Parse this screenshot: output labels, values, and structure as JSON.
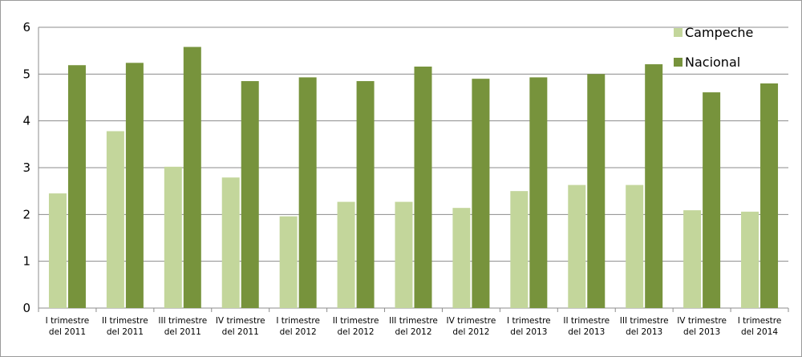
{
  "chart_data": {
    "type": "bar",
    "categories": [
      [
        "I trimestre",
        "del 2011"
      ],
      [
        "II trimestre",
        "del 2011"
      ],
      [
        "III trimestre",
        "del 2011"
      ],
      [
        "IV trimestre",
        "del 2011"
      ],
      [
        "I trimestre",
        "del 2012"
      ],
      [
        "II trimestre",
        "del 2012"
      ],
      [
        "III trimestre",
        "del 2012"
      ],
      [
        "IV trimestre",
        "del 2012"
      ],
      [
        "I trimestre",
        "del 2013"
      ],
      [
        "II trimestre",
        "del 2013"
      ],
      [
        "III trimestre",
        "del 2013"
      ],
      [
        "IV trimestre",
        "del 2013"
      ],
      [
        "I trimestre",
        "del 2014"
      ]
    ],
    "series": [
      {
        "name": "Campeche",
        "color": "#c3d69b",
        "values": [
          2.45,
          3.78,
          3.02,
          2.79,
          1.96,
          2.27,
          2.27,
          2.14,
          2.5,
          2.63,
          2.63,
          2.09,
          2.06
        ]
      },
      {
        "name": "Nacional",
        "color": "#77933c",
        "values": [
          5.19,
          5.24,
          5.58,
          4.85,
          4.93,
          4.85,
          5.16,
          4.9,
          4.93,
          5.0,
          5.21,
          4.61,
          4.8
        ]
      }
    ],
    "ylim": [
      0,
      6
    ],
    "yticks": [
      0,
      1,
      2,
      3,
      4,
      5,
      6
    ],
    "grid": true,
    "legend_position": "top-right",
    "title": "",
    "xlabel": "",
    "ylabel": ""
  }
}
